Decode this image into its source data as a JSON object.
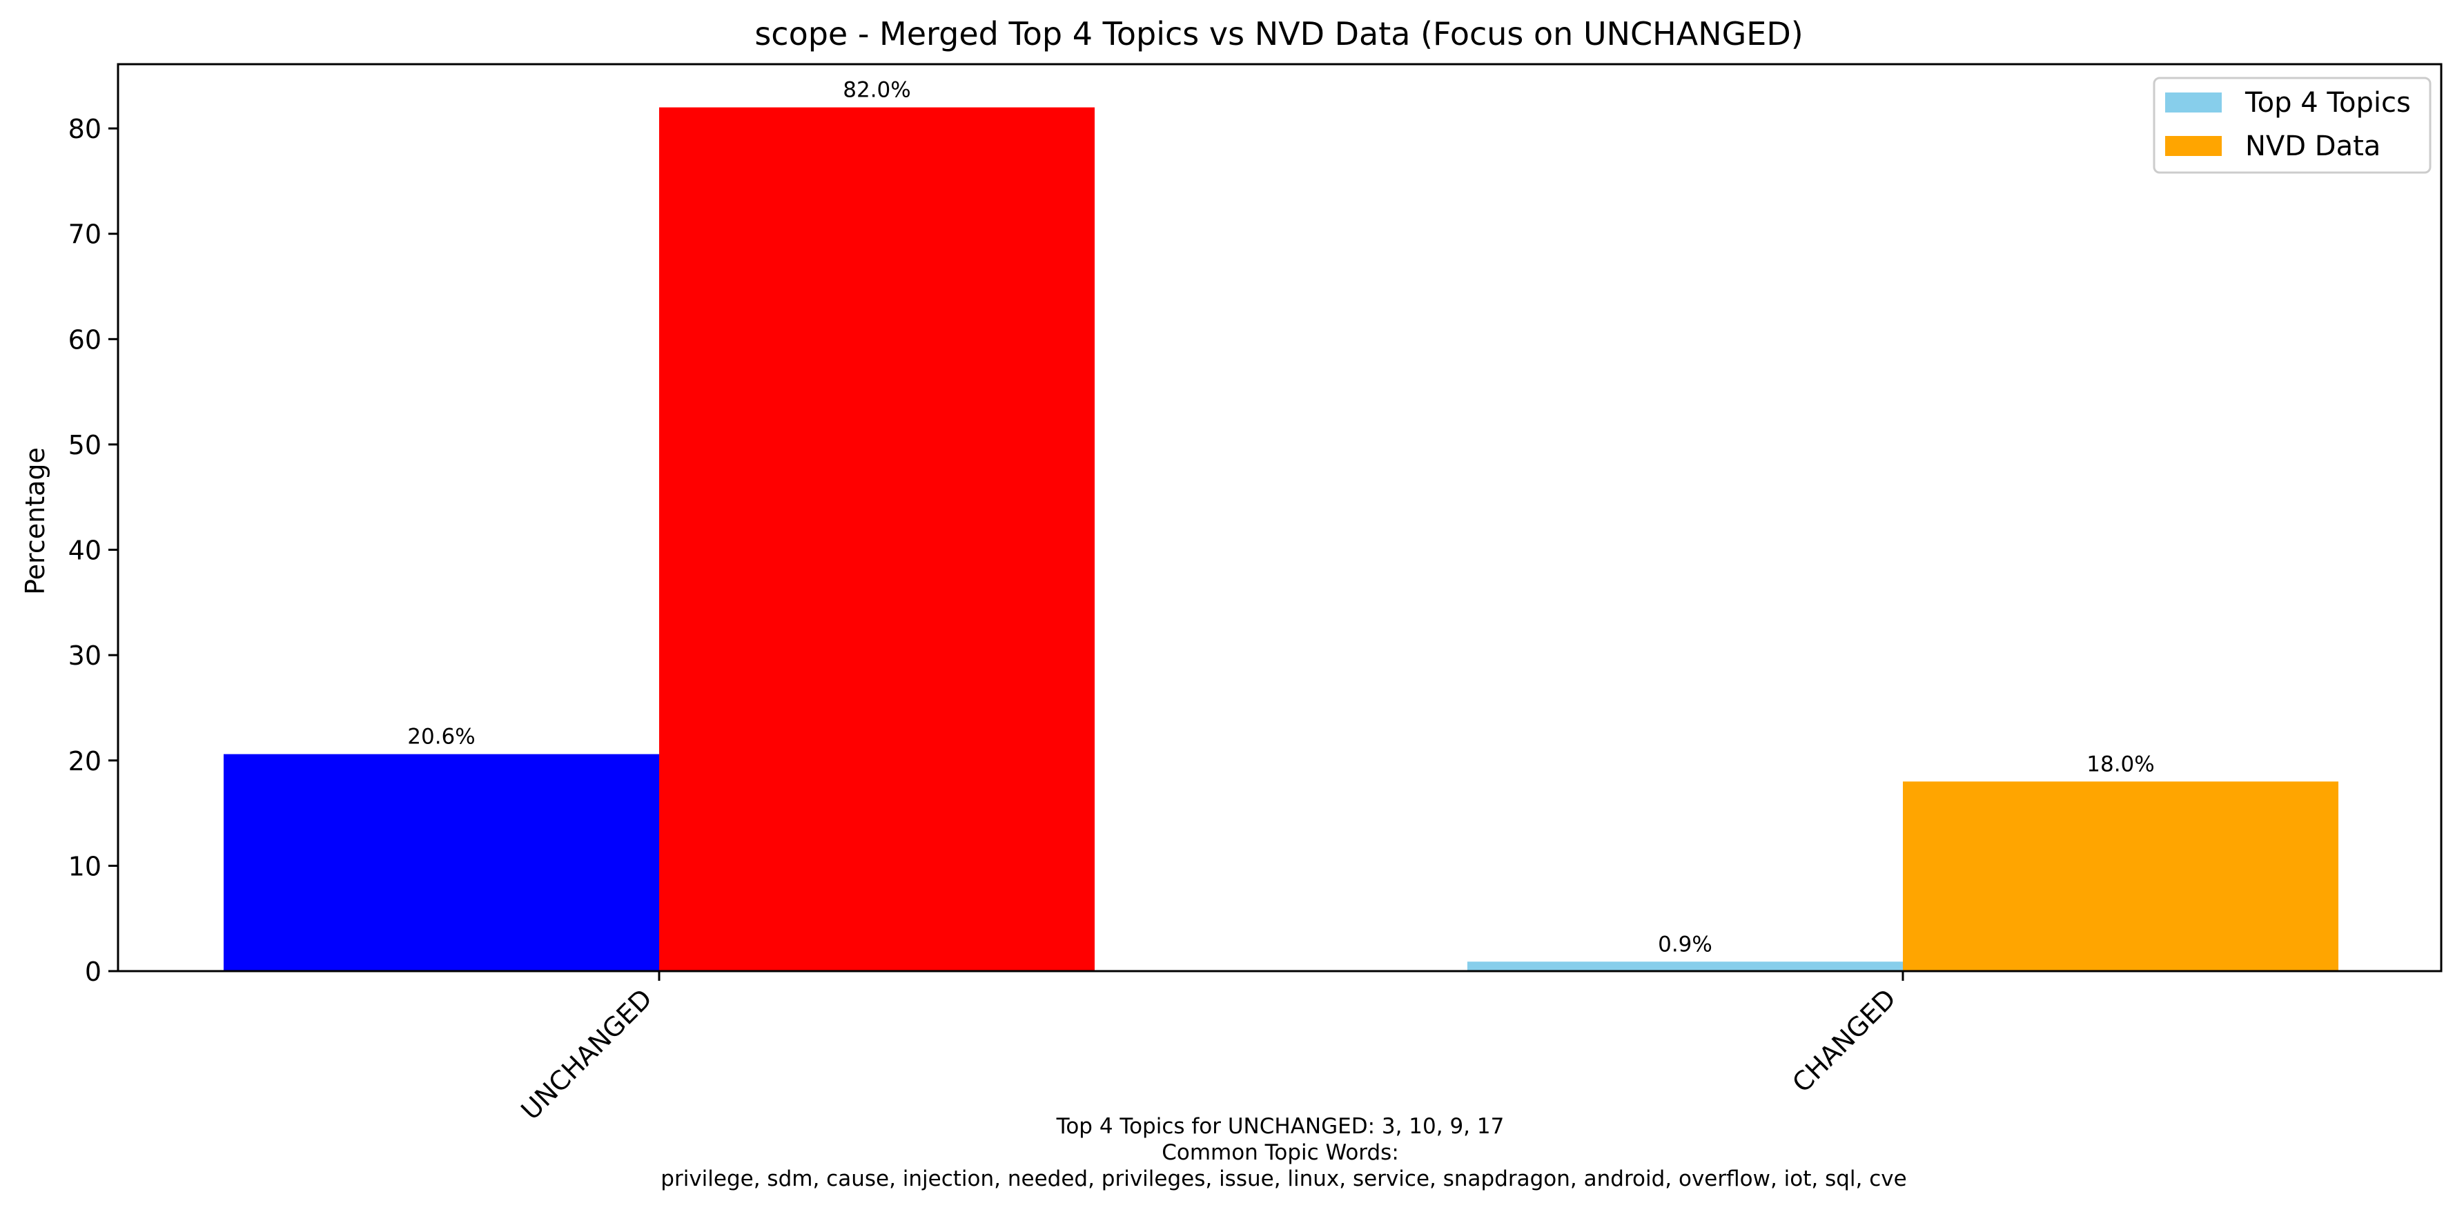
{
  "chart_data": {
    "type": "bar",
    "title": "scope - Merged Top 4 Topics vs NVD Data (Focus on UNCHANGED)",
    "xlabel": "",
    "ylabel": "Percentage",
    "categories": [
      "UNCHANGED",
      "CHANGED"
    ],
    "series": [
      {
        "name": "Top 4 Topics",
        "legend_color": "#87CEEB",
        "values": [
          20.6,
          0.9
        ],
        "colors": [
          "#0000FF",
          "#87CEEB"
        ],
        "labels": [
          "20.6%",
          "0.9%"
        ]
      },
      {
        "name": "NVD Data",
        "legend_color": "#FFA500",
        "values": [
          82.0,
          18.0
        ],
        "colors": [
          "#FF0000",
          "#FFA500"
        ],
        "labels": [
          "82.0%",
          "18.0%"
        ]
      }
    ],
    "ylim": [
      0,
      86.1
    ],
    "yticks": [
      0,
      10,
      20,
      30,
      40,
      50,
      60,
      70,
      80
    ],
    "legend_position": "top-right",
    "grid": false,
    "footnote": [
      "Top 4 Topics for UNCHANGED: 3, 10, 9, 17",
      "Common Topic Words:",
      "privilege,  sdm,  cause,  injection,  needed,  privileges,  issue,  linux,  service,  snapdragon,  android,  overflow,  iot,  sql,  cve"
    ]
  }
}
